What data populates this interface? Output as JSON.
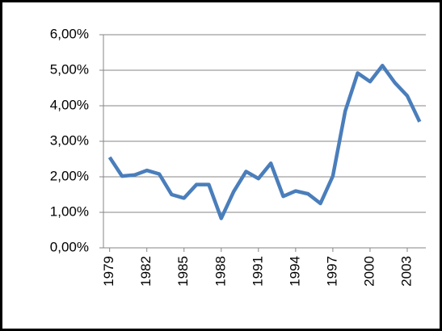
{
  "chart_data": {
    "type": "line",
    "x": [
      1979,
      1980,
      1981,
      1982,
      1983,
      1984,
      1985,
      1986,
      1987,
      1988,
      1989,
      1990,
      1991,
      1992,
      1993,
      1994,
      1995,
      1996,
      1997,
      1998,
      1999,
      2000,
      2001,
      2002,
      2003,
      2004
    ],
    "series": [
      {
        "color": "#4a7ebb",
        "values": [
          2.55,
          2.02,
          2.05,
          2.18,
          2.08,
          1.5,
          1.4,
          1.78,
          1.78,
          0.83,
          1.58,
          2.15,
          1.95,
          2.38,
          1.45,
          1.6,
          1.52,
          1.25,
          2.02,
          3.85,
          4.92,
          4.68,
          5.13,
          4.65,
          4.28,
          3.55
        ]
      }
    ],
    "xlim": [
      1978.5,
      2004.5
    ],
    "xticks": [
      1979,
      1982,
      1985,
      1988,
      1991,
      1994,
      1997,
      2000,
      2003
    ],
    "ylim": [
      0,
      6
    ],
    "yticks": [
      {
        "value": 0,
        "label": "0,00%"
      },
      {
        "value": 1,
        "label": "1,00%"
      },
      {
        "value": 2,
        "label": "2,00%"
      },
      {
        "value": 3,
        "label": "3,00%"
      },
      {
        "value": 4,
        "label": "4,00%"
      },
      {
        "value": 5,
        "label": "5,00%"
      },
      {
        "value": 6,
        "label": "6,00%"
      }
    ],
    "grid": true
  }
}
